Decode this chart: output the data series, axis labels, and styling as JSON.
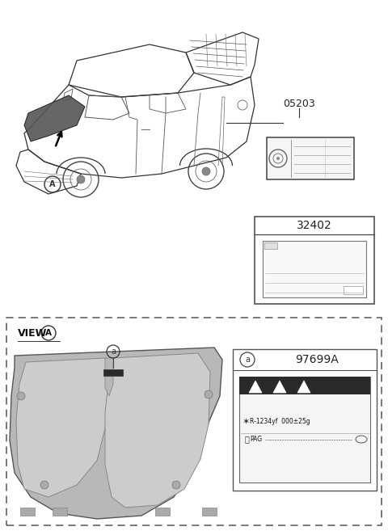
{
  "bg_color": "#ffffff",
  "part_05203": "05203",
  "part_32402": "32402",
  "part_97699A": "97699A",
  "view_label": "VIEW",
  "bubble_a": "a",
  "label_R1234yf": "R-1234yf  000±25g",
  "label_PAG": "PAG",
  "fig_width": 4.8,
  "fig_height": 6.57,
  "dpi": 100
}
